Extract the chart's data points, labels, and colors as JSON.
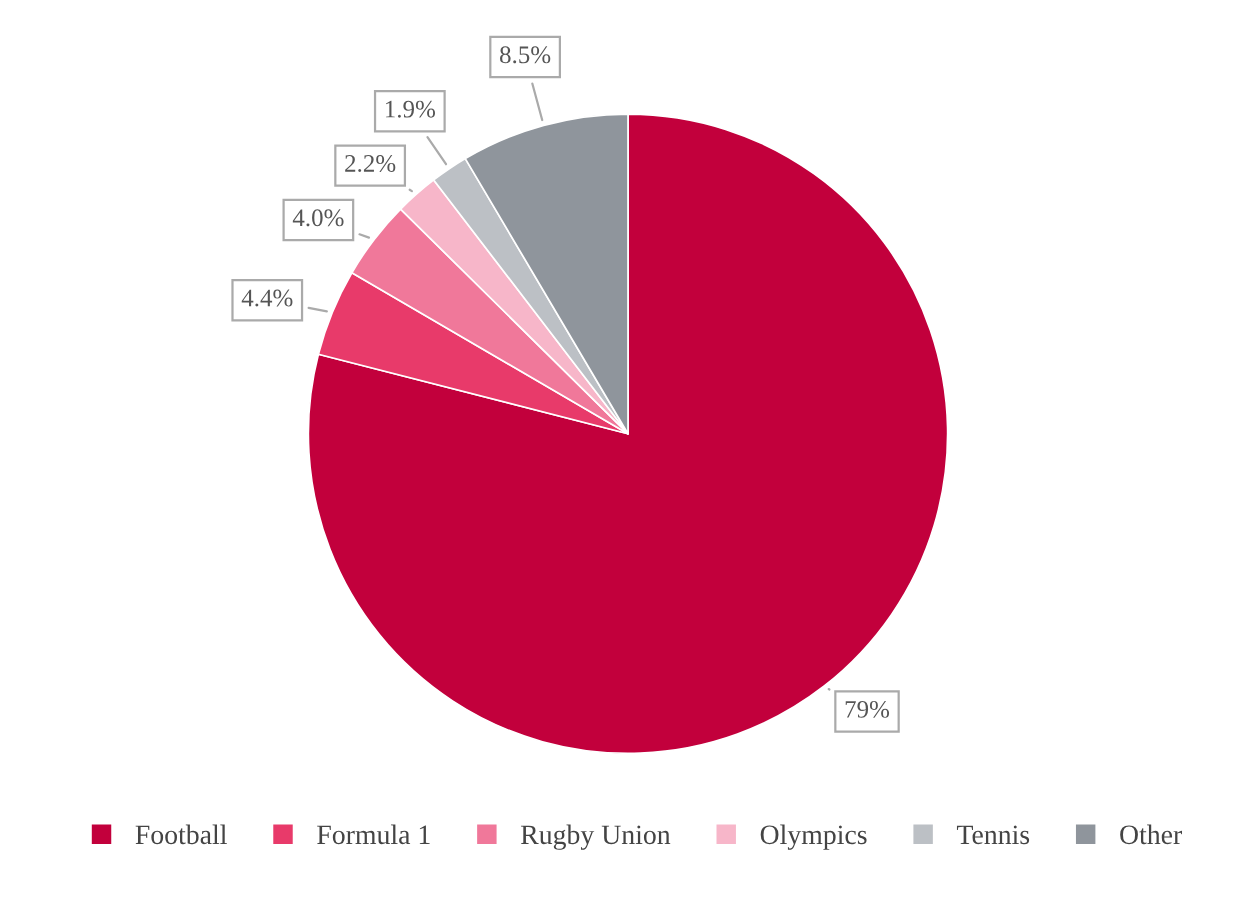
{
  "chart_data": {
    "type": "pie",
    "categories": [
      "Football",
      "Formula 1",
      "Rugby Union",
      "Olympics",
      "Tennis",
      "Other"
    ],
    "values": [
      79,
      4.4,
      4.0,
      2.2,
      1.9,
      8.5
    ],
    "value_labels": [
      "79%",
      "4.4%",
      "4.0%",
      "2.2%",
      "1.9%",
      "8.5%"
    ],
    "colors": [
      "#c2003c",
      "#e83a6a",
      "#f0789a",
      "#f7b6c9",
      "#bcc0c5",
      "#8f959c"
    ],
    "legend": "bottom"
  }
}
